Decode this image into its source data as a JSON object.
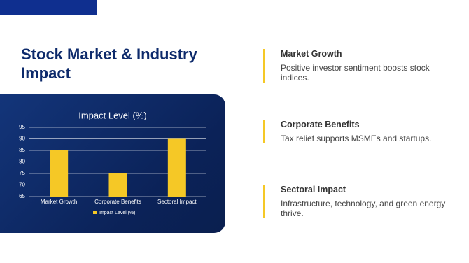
{
  "slide": {
    "title": "Stock Market & Industry Impact",
    "points": [
      {
        "heading": "Market Growth",
        "text": "Positive investor sentiment boosts stock indices."
      },
      {
        "heading": "Corporate Benefits",
        "text": "Tax relief supports MSMEs and startups."
      },
      {
        "heading": "Sectoral Impact",
        "text": "Infrastructure, technology, and green energy thrive."
      }
    ]
  },
  "chart_data": {
    "type": "bar",
    "title": "Impact Level (%)",
    "categories": [
      "Market Growth",
      "Corporate Benefits",
      "Sectoral Impact"
    ],
    "series": [
      {
        "name": "Impact Level (%)",
        "color": "#f5c826",
        "values": [
          85,
          75,
          90
        ]
      }
    ],
    "ylim": [
      65,
      95
    ],
    "yticks": [
      65,
      70,
      75,
      80,
      85,
      90,
      95
    ],
    "grid": true,
    "legend": "bottom"
  }
}
